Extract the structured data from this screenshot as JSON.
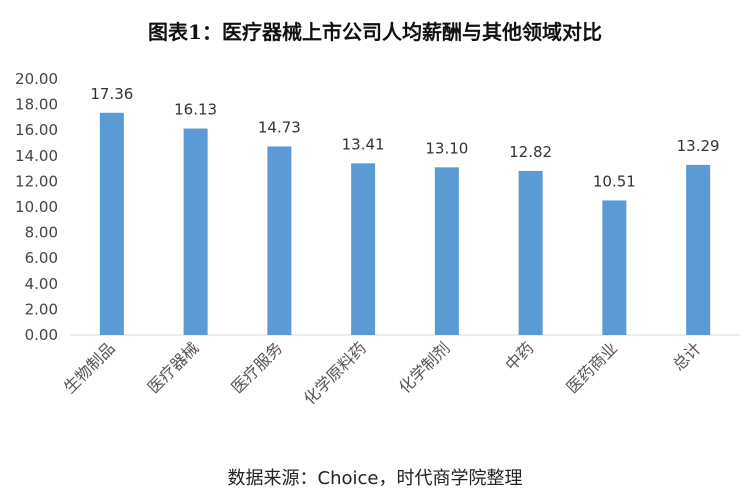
{
  "title": "图表1：医疗器械上市公司人均薪酬与其他领域对比",
  "source": "数据来源：Choice，时代商学院整理",
  "chart_data": {
    "type": "bar",
    "title": "图表1：医疗器械上市公司人均薪酬与其他领域对比",
    "xlabel": "",
    "ylabel": "",
    "categories": [
      "生物制品",
      "医疗器械",
      "医疗服务",
      "化学原料药",
      "化学制剂",
      "中药",
      "医药商业",
      "总计"
    ],
    "values": [
      17.36,
      16.13,
      14.73,
      13.41,
      13.1,
      12.82,
      10.51,
      13.29
    ],
    "value_labels": [
      "17.36",
      "16.13",
      "14.73",
      "13.41",
      "13.10",
      "12.82",
      "10.51",
      "13.29"
    ],
    "ylim": [
      0,
      20
    ],
    "yticks": [
      "0.00",
      "2.00",
      "4.00",
      "6.00",
      "8.00",
      "10.00",
      "12.00",
      "14.00",
      "16.00",
      "18.00",
      "20.00"
    ],
    "grid": false,
    "legend": "none",
    "bar_color": "#5b9bd5",
    "axis_color": "#d9d9d9"
  }
}
